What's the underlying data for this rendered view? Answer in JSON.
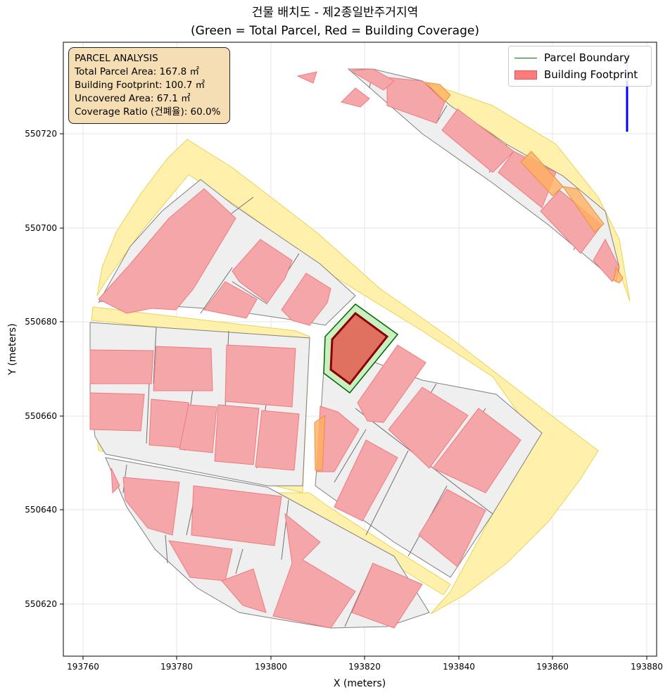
{
  "title": {
    "line1": "건물 배치도 - 제2종일반주거지역",
    "line2": "(Green = Total Parcel, Red = Building Coverage)"
  },
  "axes": {
    "xlabel": "X (meters)",
    "ylabel": "Y (meters)",
    "xlim": [
      193758,
      193882
    ],
    "ylim": [
      550609,
      550741
    ],
    "xticks": [
      193760,
      193780,
      193800,
      193820,
      193840,
      193860,
      193880
    ],
    "yticks": [
      550620,
      550640,
      550660,
      550680,
      550700,
      550720
    ],
    "grid": true
  },
  "info_box": {
    "heading": "PARCEL ANALYSIS",
    "total_area": "Total Parcel Area: 167.8 ㎡",
    "footprint": "Building Footprint: 100.7 ㎡",
    "uncovered": "Uncovered Area: 67.1 ㎡",
    "coverage": "Coverage Ratio (건폐율): 60.0%"
  },
  "legend": {
    "placement": "top-right",
    "items": [
      {
        "label": "Parcel Boundary",
        "color": "#008000"
      },
      {
        "label": "Building Footprint",
        "color": "#ff7b7b"
      }
    ]
  },
  "colors": {
    "road": "#fff0a8",
    "parcel_fill": "#efefef",
    "building": "#f4a6a8",
    "target_parcel": "#c8f0c0",
    "target_building": "#e07060",
    "north_arrow": "#0000ff"
  },
  "chart_data": {
    "type": "map",
    "target_parcel": [
      [
        193816,
        550683
      ],
      [
        193810.5,
        550677
      ],
      [
        193810,
        550669
      ],
      [
        193813,
        550665
      ],
      [
        193827,
        550677
      ]
    ],
    "target_building": [
      [
        193818,
        550681
      ],
      [
        193813,
        550676
      ],
      [
        193813,
        550670
      ],
      [
        193816,
        550666
      ],
      [
        193825,
        550677
      ]
    ]
  }
}
